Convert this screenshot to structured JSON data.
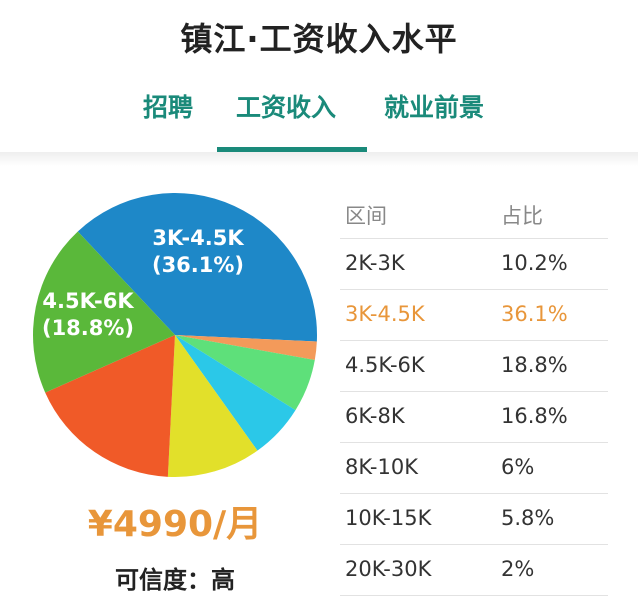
{
  "page": {
    "title": "镇江·工资收入水平"
  },
  "tabs": [
    {
      "label": "招聘",
      "active": false
    },
    {
      "label": "工资收入",
      "active": true
    },
    {
      "label": "就业前景",
      "active": false
    }
  ],
  "summary": {
    "salary": "¥4990/月",
    "confidence": "可信度：高"
  },
  "table": {
    "headers": {
      "range": "区间",
      "percent": "占比"
    },
    "rows": [
      {
        "range": "2K-3K",
        "percent": "10.2%"
      },
      {
        "range": "3K-4.5K",
        "percent": "36.1%",
        "highlight": true
      },
      {
        "range": "4.5K-6K",
        "percent": "18.8%"
      },
      {
        "range": "6K-8K",
        "percent": "16.8%"
      },
      {
        "range": "8K-10K",
        "percent": "6%"
      },
      {
        "range": "10K-15K",
        "percent": "5.8%"
      },
      {
        "range": "20K-30K",
        "percent": "2%"
      }
    ]
  },
  "chart_data": {
    "type": "pie",
    "title": "",
    "categories": [
      "3K-4.5K",
      "20K-30K",
      "10K-15K",
      "8K-10K",
      "2K-3K",
      "6K-8K",
      "4.5K-6K"
    ],
    "values": [
      36.1,
      2,
      5.8,
      6,
      10.2,
      16.8,
      18.8
    ],
    "colors": [
      "#1e88c8",
      "#f39a5a",
      "#5ee07a",
      "#2bc8e8",
      "#e2e02a",
      "#f05a28",
      "#5ab83a"
    ],
    "labels": [
      {
        "category": "3K-4.5K",
        "line1": "3K-4.5K",
        "line2": "(36.1%)"
      },
      {
        "category": "4.5K-6K",
        "line1": "4.5K-6K",
        "line2": "(18.8%)"
      }
    ]
  }
}
